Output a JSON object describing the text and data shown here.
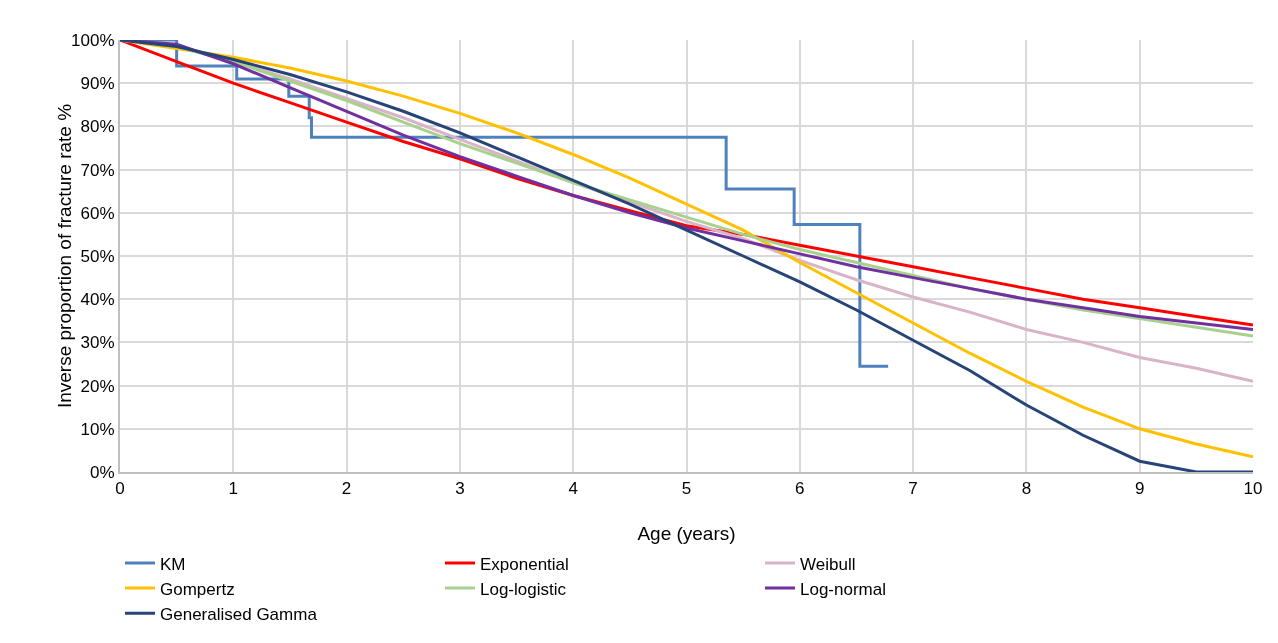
{
  "chart_data": {
    "type": "line",
    "xlabel": "Age (years)",
    "ylabel": "Inverse proportion of fracture rate %",
    "x": [
      0,
      0.5,
      1,
      1.5,
      2,
      2.5,
      3,
      3.5,
      4,
      4.5,
      5,
      5.5,
      6,
      6.5,
      7,
      7.5,
      8,
      8.5,
      9,
      9.5,
      10
    ],
    "series": [
      {
        "name": "KM",
        "type": "step",
        "color": "#4f81bd",
        "x": [
          0,
          0.5,
          1.03,
          1.49,
          1.67,
          1.69,
          5.35,
          5.95,
          6.53,
          6.78
        ],
        "values": [
          100,
          94,
          91,
          87,
          82,
          77.5,
          65.5,
          57.3,
          24.5,
          24.5
        ]
      },
      {
        "name": "Exponential",
        "color": "#ff0000",
        "values": [
          100,
          95,
          90,
          85.5,
          81,
          76.5,
          72.5,
          68,
          64,
          60.5,
          57,
          55,
          52.5,
          50,
          47.5,
          45,
          42.5,
          40,
          38,
          36,
          34
        ]
      },
      {
        "name": "Weibull",
        "color": "#d9b3c8",
        "values": [
          100,
          98.5,
          95,
          91,
          86.5,
          82,
          77,
          72,
          67,
          62.5,
          58,
          54,
          49,
          44.5,
          40.5,
          37,
          33,
          30,
          26.5,
          24,
          21
        ]
      },
      {
        "name": "Gompertz",
        "color": "#ffc000",
        "values": [
          100,
          98,
          96,
          93.5,
          90.5,
          87,
          83,
          78.5,
          73.5,
          68,
          62,
          56,
          48.5,
          41.5,
          34.5,
          27.5,
          21,
          15,
          10,
          6.5,
          3.5
        ]
      },
      {
        "name": "Log-logistic",
        "color": "#a9d18e",
        "values": [
          100,
          98.5,
          95,
          90.5,
          86,
          81,
          76,
          71.5,
          67,
          63,
          59,
          55,
          51.5,
          48.5,
          45.5,
          42.5,
          40,
          37.5,
          35.5,
          33.5,
          31.5
        ]
      },
      {
        "name": "Log-normal",
        "color": "#7030a0",
        "values": [
          100,
          99,
          94.5,
          89,
          83.5,
          78,
          73,
          68.5,
          64,
          60,
          56.5,
          53.5,
          50.5,
          47.5,
          45,
          42.5,
          40,
          38,
          36,
          34.5,
          33
        ]
      },
      {
        "name": "Generalised Gamma",
        "color": "#264478",
        "values": [
          100,
          98.5,
          95.5,
          92,
          88,
          83.5,
          78.5,
          73,
          67.5,
          62,
          56,
          50,
          44,
          37.5,
          30.5,
          23.5,
          15.5,
          8.5,
          2.5,
          0,
          0
        ]
      }
    ],
    "xlim": [
      0,
      10
    ],
    "xticks": [
      0,
      1,
      2,
      3,
      4,
      5,
      6,
      7,
      8,
      9,
      10
    ],
    "ylim": [
      0,
      100
    ],
    "yticks": [
      {
        "value": 0,
        "label": "0%"
      },
      {
        "value": 10,
        "label": "10%"
      },
      {
        "value": 20,
        "label": "20%"
      },
      {
        "value": 30,
        "label": "30%"
      },
      {
        "value": 40,
        "label": "40%"
      },
      {
        "value": 50,
        "label": "50%"
      },
      {
        "value": 60,
        "label": "60%"
      },
      {
        "value": 70,
        "label": "70%"
      },
      {
        "value": 80,
        "label": "80%"
      },
      {
        "value": 90,
        "label": "90%"
      },
      {
        "value": 100,
        "label": "100%"
      }
    ],
    "grid": true,
    "legend": "bottom",
    "marker": "none",
    "line_style": "solid"
  }
}
